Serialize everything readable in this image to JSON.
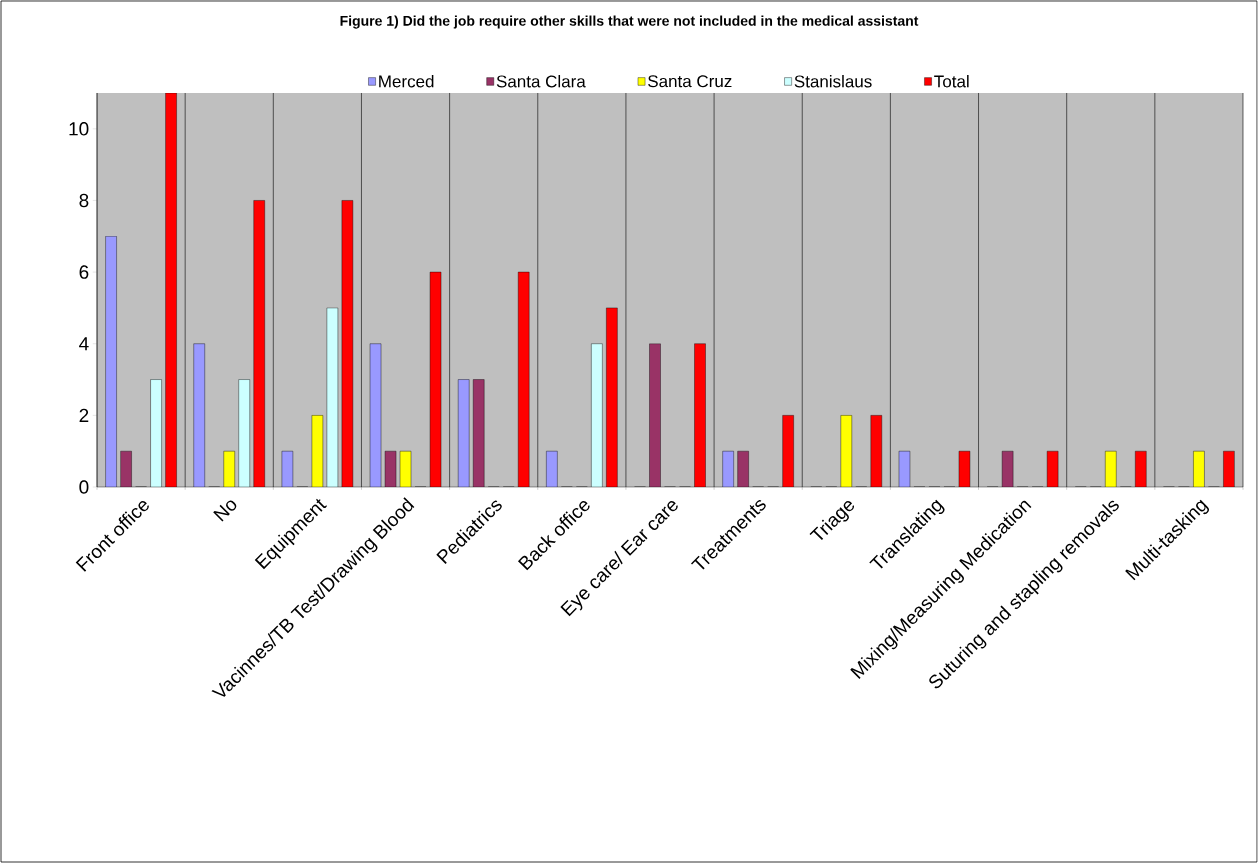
{
  "chart_data": {
    "type": "bar",
    "title": "Figure 1) Did the job require other skills that were not included in the medical assistant",
    "categories": [
      "Front office",
      "No",
      "Equipment",
      "Vacinnes/TB Test/Drawing Blood",
      "Pediatrics",
      "Back office",
      "Eye care/ Ear care",
      "Treatments",
      "Triage",
      "Translating",
      "Mixing/Measuring Medication",
      "Suturing and stapling removals",
      "Multi-tasking"
    ],
    "series": [
      {
        "name": "Merced",
        "color": "#9999ff",
        "values": [
          7,
          4,
          1,
          4,
          3,
          1,
          0,
          1,
          0,
          1,
          0,
          0,
          0
        ]
      },
      {
        "name": "Santa Clara",
        "color": "#993366",
        "values": [
          1,
          0,
          0,
          1,
          3,
          0,
          4,
          1,
          0,
          0,
          1,
          0,
          0
        ]
      },
      {
        "name": "Santa Cruz",
        "color": "#ffff00",
        "values": [
          0,
          1,
          2,
          1,
          0,
          0,
          0,
          0,
          2,
          0,
          0,
          1,
          1
        ]
      },
      {
        "name": "Stanislaus",
        "color": "#ccffff",
        "values": [
          3,
          3,
          5,
          0,
          0,
          4,
          0,
          0,
          0,
          0,
          0,
          0,
          0
        ]
      },
      {
        "name": "Total",
        "color": "#ff0000",
        "values": [
          11,
          8,
          8,
          6,
          6,
          5,
          4,
          2,
          2,
          1,
          1,
          1,
          1
        ]
      }
    ],
    "ylim": [
      0,
      11
    ],
    "yticks": [
      0,
      2,
      4,
      6,
      8,
      10
    ],
    "grid": "x",
    "legend": "top"
  }
}
